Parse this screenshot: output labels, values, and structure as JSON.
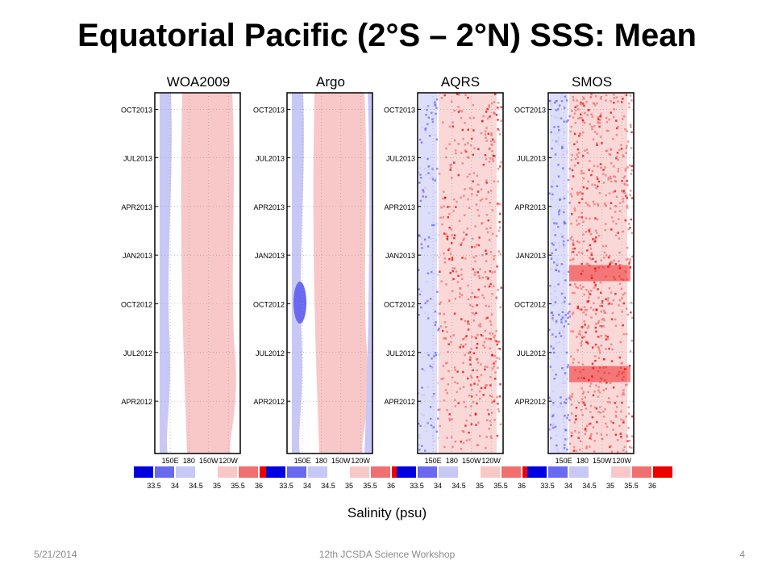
{
  "title": "Equatorial Pacific (2°S – 2°N) SSS:  Mean",
  "chart_data": {
    "type": "heatmap",
    "panels": [
      {
        "name": "WOA2009"
      },
      {
        "name": "Argo"
      },
      {
        "name": "AQRS"
      },
      {
        "name": "SMOS"
      }
    ],
    "y_tick_labels": [
      "OCT2013",
      "JUL2013",
      "APR2013",
      "JAN2013",
      "OCT2012",
      "JUL2012",
      "APR2012"
    ],
    "x_tick_labels": [
      "150E",
      "180",
      "150W",
      "120W"
    ],
    "colorbar": {
      "tick_labels": [
        "33.5",
        "34",
        "34.5",
        "35",
        "35.5",
        "36"
      ],
      "colors": [
        "#0000e0",
        "#6a6af0",
        "#c8c8f6",
        "#ffffff",
        "#f8c8c8",
        "#f07070",
        "#ee0000"
      ]
    },
    "xlabel": "Salinity (psu)"
  },
  "footer": {
    "date": "5/21/2014",
    "center": "12th JCSDA Science Workshop",
    "page": "4"
  }
}
